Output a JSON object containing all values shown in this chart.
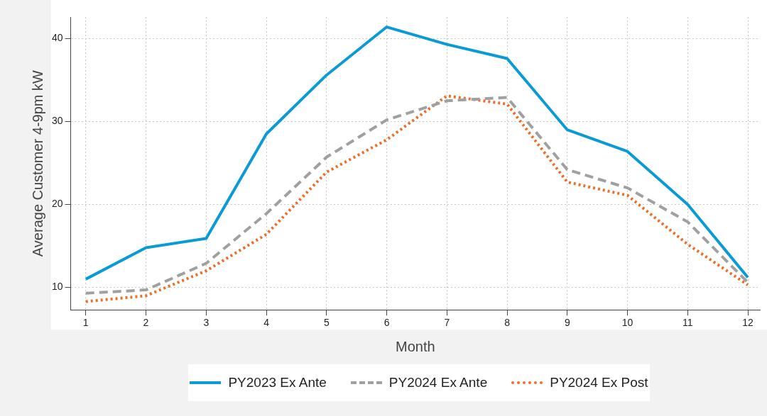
{
  "chart_data": {
    "type": "line",
    "xlabel": "Month",
    "ylabel": "Average Customer 4-9pm kW",
    "x": [
      1,
      2,
      3,
      4,
      5,
      6,
      7,
      8,
      9,
      10,
      11,
      12
    ],
    "xlim": [
      0.75,
      12.2
    ],
    "xticks": [
      1,
      2,
      3,
      4,
      5,
      6,
      7,
      8,
      9,
      10,
      11,
      12
    ],
    "ylim": [
      7.3,
      42.6
    ],
    "yticks": [
      10,
      20,
      30,
      40
    ],
    "grid": true,
    "legend": "bottom",
    "marker": "none",
    "series": [
      {
        "name": "PY2023 Ex Ante",
        "color": "#0a9bd6",
        "line_style": "solid",
        "values": [
          11.0,
          14.8,
          15.9,
          28.5,
          35.6,
          41.4,
          39.3,
          37.6,
          29.0,
          26.4,
          20.0,
          11.2
        ]
      },
      {
        "name": "PY2024 Ex Ante",
        "color": "#a0a0a0",
        "line_style": "dashed",
        "values": [
          9.3,
          9.7,
          12.9,
          18.9,
          25.7,
          30.2,
          32.5,
          32.9,
          24.2,
          22.0,
          17.9,
          10.6
        ]
      },
      {
        "name": "PY2024 Ex Post",
        "color": "#e8702a",
        "line_style": "dotted",
        "values": [
          8.3,
          9.0,
          12.0,
          16.4,
          23.9,
          27.8,
          33.1,
          32.1,
          22.7,
          21.1,
          15.2,
          10.3
        ]
      }
    ]
  }
}
